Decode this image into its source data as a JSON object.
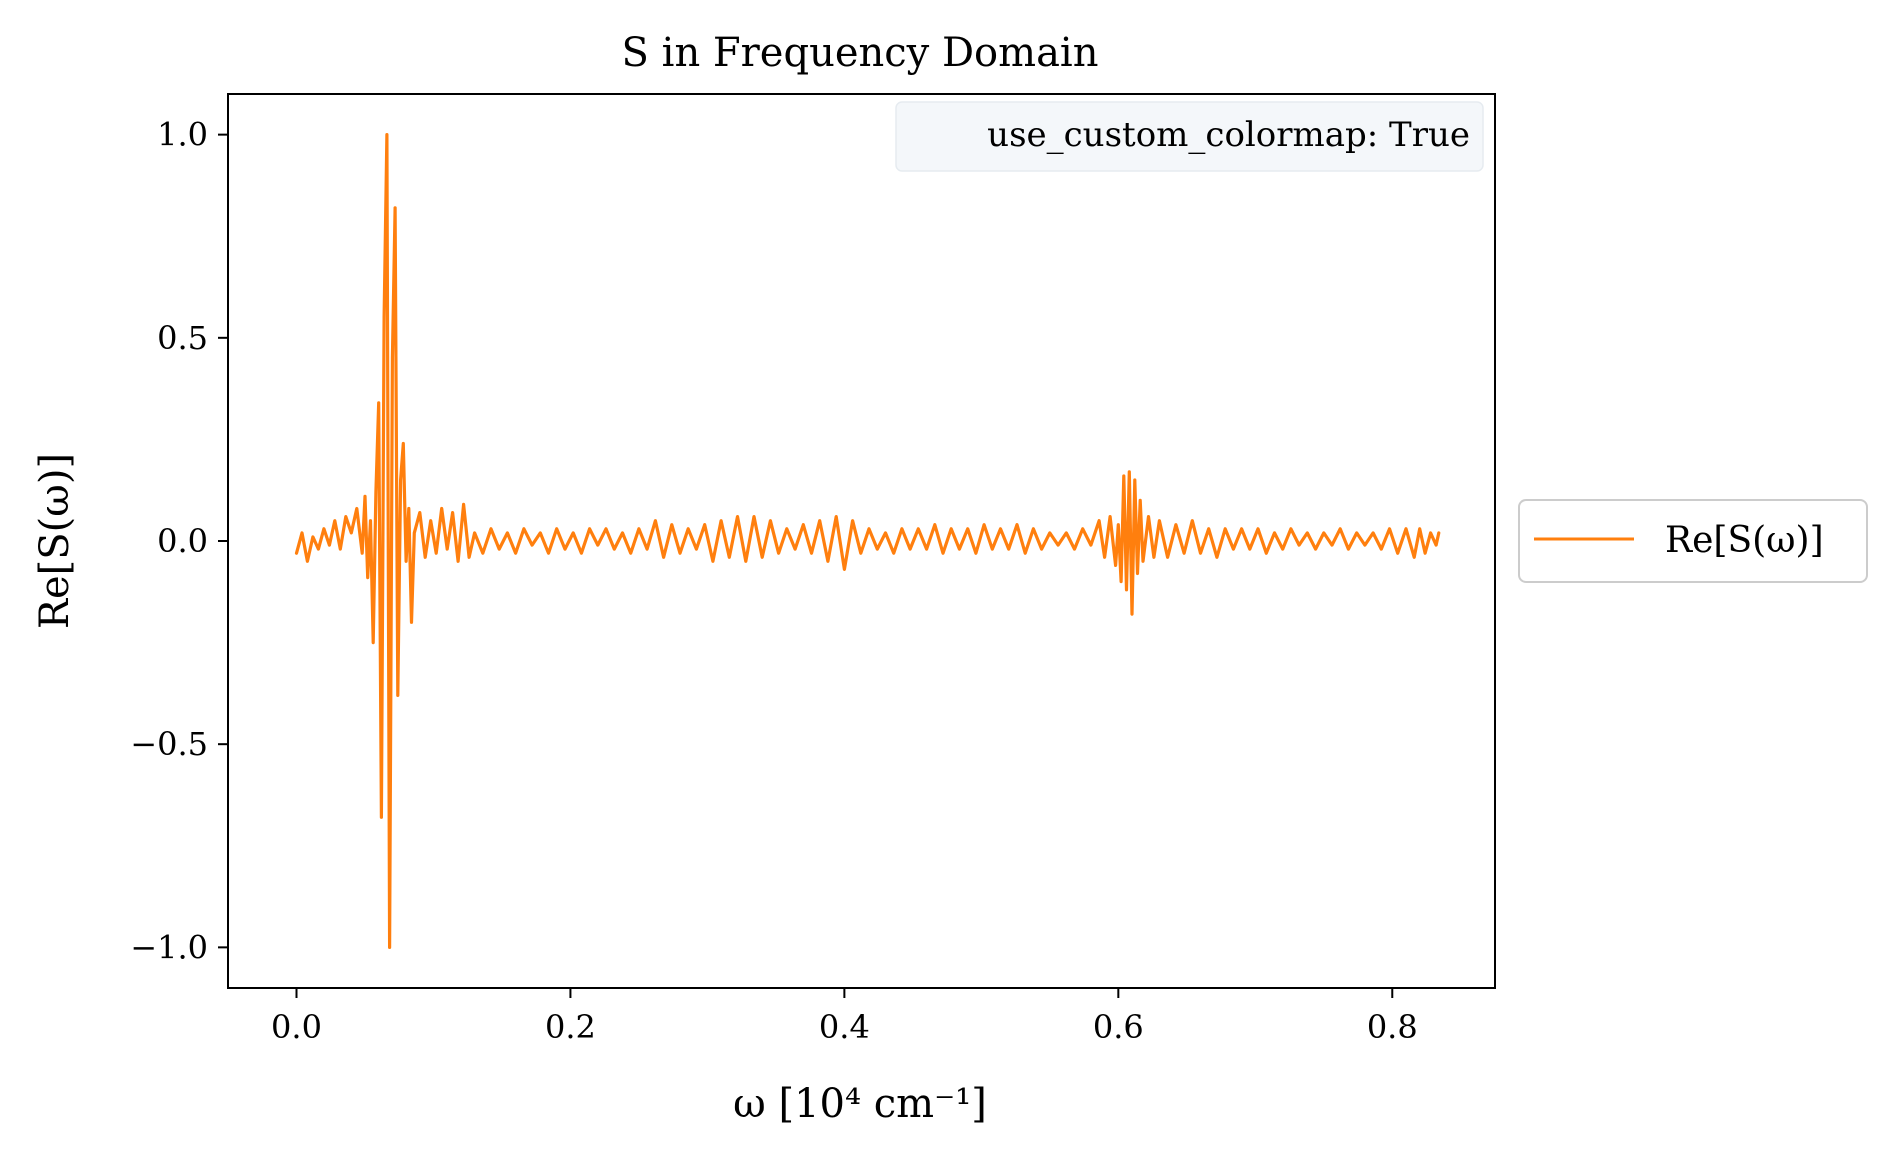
{
  "chart_data": {
    "type": "line",
    "title": "S in Frequency Domain",
    "xlabel": "ω [10⁴ cm⁻¹]",
    "ylabel": "Re[S(ω)]",
    "xlim": [
      -0.05,
      0.875
    ],
    "ylim": [
      -1.1,
      1.1
    ],
    "xticks": [
      0.0,
      0.2,
      0.4,
      0.6,
      0.8
    ],
    "xtick_labels": [
      "0.0",
      "0.2",
      "0.4",
      "0.6",
      "0.8"
    ],
    "yticks": [
      -1.0,
      -0.5,
      0.0,
      0.5,
      1.0
    ],
    "ytick_labels": [
      "−1.0",
      "−0.5",
      "0.0",
      "0.5",
      "1.0"
    ],
    "grid": false,
    "legend": {
      "placement": "outside-right",
      "entries": [
        "Re[S(ω)]"
      ]
    },
    "annotation": "use_custom_colormap: True",
    "series": [
      {
        "name": "Re[S(ω)]",
        "color": "#ff7f0e",
        "x": [
          0.0,
          0.004,
          0.008,
          0.012,
          0.016,
          0.02,
          0.024,
          0.028,
          0.032,
          0.036,
          0.04,
          0.044,
          0.048,
          0.05,
          0.052,
          0.054,
          0.056,
          0.058,
          0.06,
          0.062,
          0.064,
          0.066,
          0.068,
          0.07,
          0.072,
          0.074,
          0.076,
          0.078,
          0.08,
          0.082,
          0.084,
          0.086,
          0.09,
          0.094,
          0.098,
          0.102,
          0.106,
          0.11,
          0.114,
          0.118,
          0.122,
          0.126,
          0.13,
          0.136,
          0.142,
          0.148,
          0.154,
          0.16,
          0.166,
          0.172,
          0.178,
          0.184,
          0.19,
          0.196,
          0.202,
          0.208,
          0.214,
          0.22,
          0.226,
          0.232,
          0.238,
          0.244,
          0.25,
          0.256,
          0.262,
          0.268,
          0.274,
          0.28,
          0.286,
          0.292,
          0.298,
          0.304,
          0.31,
          0.316,
          0.322,
          0.328,
          0.334,
          0.34,
          0.346,
          0.352,
          0.358,
          0.364,
          0.37,
          0.376,
          0.382,
          0.388,
          0.394,
          0.4,
          0.406,
          0.412,
          0.418,
          0.424,
          0.43,
          0.436,
          0.442,
          0.448,
          0.454,
          0.46,
          0.466,
          0.472,
          0.478,
          0.484,
          0.49,
          0.496,
          0.502,
          0.508,
          0.514,
          0.52,
          0.526,
          0.532,
          0.538,
          0.544,
          0.55,
          0.556,
          0.562,
          0.568,
          0.574,
          0.58,
          0.586,
          0.59,
          0.594,
          0.598,
          0.6,
          0.602,
          0.604,
          0.606,
          0.608,
          0.61,
          0.612,
          0.614,
          0.616,
          0.618,
          0.622,
          0.626,
          0.63,
          0.636,
          0.642,
          0.648,
          0.654,
          0.66,
          0.666,
          0.672,
          0.678,
          0.684,
          0.69,
          0.696,
          0.702,
          0.708,
          0.714,
          0.72,
          0.726,
          0.732,
          0.738,
          0.744,
          0.75,
          0.756,
          0.762,
          0.768,
          0.774,
          0.78,
          0.786,
          0.792,
          0.798,
          0.804,
          0.81,
          0.816,
          0.82,
          0.824,
          0.828,
          0.832,
          0.834
        ],
        "values": [
          -0.03,
          0.02,
          -0.05,
          0.01,
          -0.02,
          0.03,
          -0.01,
          0.05,
          -0.02,
          0.06,
          0.02,
          0.08,
          -0.03,
          0.11,
          -0.09,
          0.05,
          -0.25,
          0.12,
          0.34,
          -0.68,
          0.55,
          1.0,
          -1.0,
          0.45,
          0.82,
          -0.38,
          0.15,
          0.24,
          -0.05,
          0.08,
          -0.2,
          0.02,
          0.07,
          -0.04,
          0.05,
          -0.03,
          0.08,
          -0.02,
          0.07,
          -0.05,
          0.09,
          -0.04,
          0.02,
          -0.03,
          0.03,
          -0.02,
          0.02,
          -0.03,
          0.03,
          -0.01,
          0.02,
          -0.03,
          0.03,
          -0.02,
          0.02,
          -0.03,
          0.03,
          -0.01,
          0.03,
          -0.02,
          0.02,
          -0.03,
          0.03,
          -0.02,
          0.05,
          -0.04,
          0.04,
          -0.03,
          0.03,
          -0.02,
          0.04,
          -0.05,
          0.05,
          -0.04,
          0.06,
          -0.05,
          0.06,
          -0.04,
          0.05,
          -0.03,
          0.03,
          -0.02,
          0.04,
          -0.03,
          0.05,
          -0.05,
          0.06,
          -0.07,
          0.05,
          -0.03,
          0.03,
          -0.02,
          0.02,
          -0.03,
          0.03,
          -0.02,
          0.03,
          -0.02,
          0.04,
          -0.03,
          0.03,
          -0.02,
          0.03,
          -0.03,
          0.04,
          -0.02,
          0.03,
          -0.02,
          0.04,
          -0.03,
          0.03,
          -0.02,
          0.02,
          -0.01,
          0.02,
          -0.02,
          0.03,
          -0.01,
          0.05,
          -0.04,
          0.06,
          -0.06,
          0.04,
          -0.1,
          0.16,
          -0.12,
          0.17,
          -0.18,
          0.15,
          -0.08,
          0.1,
          -0.05,
          0.06,
          -0.04,
          0.05,
          -0.04,
          0.04,
          -0.03,
          0.05,
          -0.03,
          0.03,
          -0.04,
          0.03,
          -0.02,
          0.03,
          -0.02,
          0.03,
          -0.03,
          0.02,
          -0.02,
          0.03,
          -0.01,
          0.02,
          -0.02,
          0.02,
          -0.01,
          0.03,
          -0.02,
          0.02,
          -0.01,
          0.02,
          -0.02,
          0.03,
          -0.03,
          0.03,
          -0.04,
          0.03,
          -0.03,
          0.02,
          -0.01,
          0.02
        ]
      }
    ]
  }
}
